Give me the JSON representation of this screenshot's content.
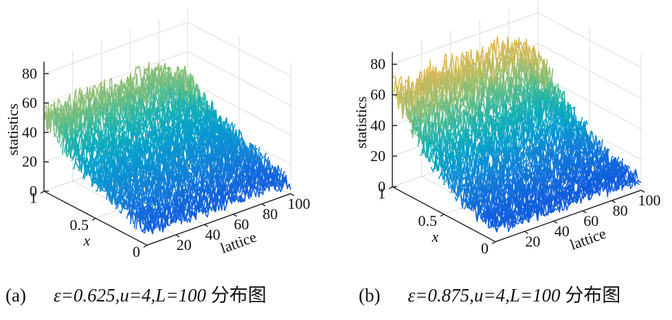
{
  "chart_data": [
    {
      "type": "surface",
      "panel_label": "(a)",
      "caption_math": "ε=0.625,u=4,L=100",
      "caption_text": "分布图",
      "params": {
        "epsilon": 0.625,
        "u": 4,
        "L": 100
      },
      "xlabel": "lattice",
      "ylabel": "x",
      "zlabel": "statistics",
      "xlim": [
        0,
        100
      ],
      "ylim": [
        0,
        1
      ],
      "zlim": [
        0,
        85
      ],
      "xticks": [
        "20",
        "40",
        "60",
        "80",
        "100"
      ],
      "yticks": [
        "0",
        "0.5",
        "1"
      ],
      "zticks": [
        "0",
        "20",
        "40",
        "60",
        "80"
      ],
      "grid": true,
      "colormap": "parula",
      "profile": {
        "x": [
          0,
          0.1,
          0.2,
          0.3,
          0.4,
          0.5,
          0.6,
          0.7,
          0.8,
          0.9,
          1
        ],
        "mean_statistics": [
          10,
          12,
          15,
          19,
          22,
          25,
          28,
          32,
          38,
          47,
          52
        ]
      }
    },
    {
      "type": "surface",
      "panel_label": "(b)",
      "caption_math": "ε=0.875,u=4,L=100",
      "caption_text": "分布图",
      "params": {
        "epsilon": 0.875,
        "u": 4,
        "L": 100
      },
      "xlabel": "lattice",
      "ylabel": "x",
      "zlabel": "statistics",
      "xlim": [
        0,
        100
      ],
      "ylim": [
        0,
        1
      ],
      "zlim": [
        0,
        85
      ],
      "xticks": [
        "20",
        "40",
        "60",
        "80",
        "100"
      ],
      "yticks": [
        "0",
        "0.5",
        "1"
      ],
      "zticks": [
        "0",
        "20",
        "40",
        "60",
        "80"
      ],
      "grid": true,
      "colormap": "parula",
      "profile": {
        "x": [
          0,
          0.1,
          0.2,
          0.3,
          0.4,
          0.5,
          0.6,
          0.7,
          0.8,
          0.9,
          1
        ],
        "mean_statistics": [
          9,
          10,
          12,
          15,
          19,
          24,
          30,
          36,
          44,
          55,
          63
        ]
      }
    }
  ],
  "colors": {
    "parula_low": "#352a87",
    "parula_mid": "#1fa7d6",
    "parula_high": "#f9fb0e",
    "axis": "#262626",
    "grid": "#dcdcdc"
  }
}
